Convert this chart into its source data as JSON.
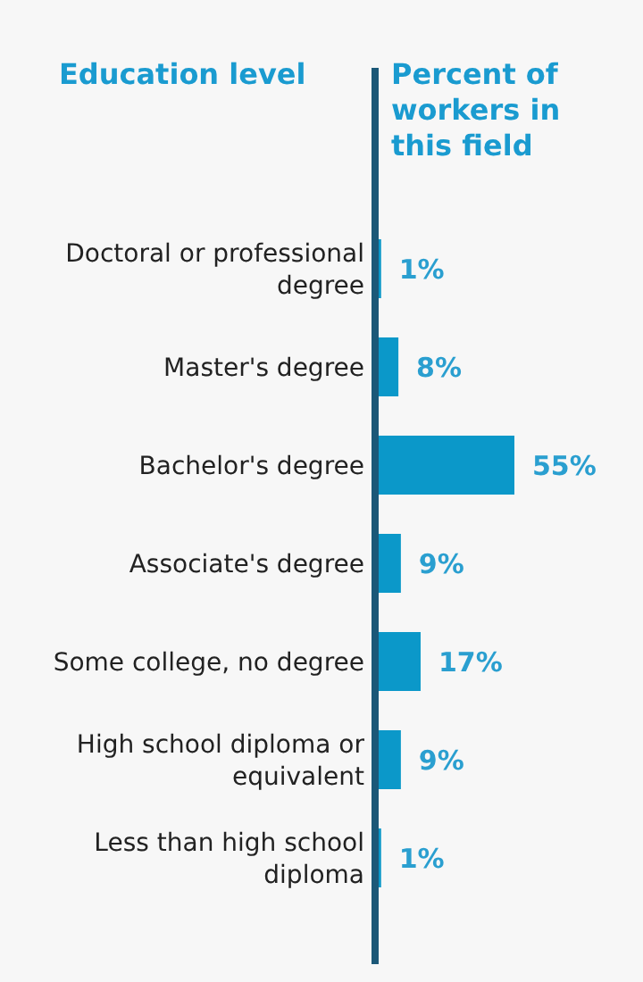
{
  "chart_data": {
    "type": "bar",
    "orientation": "horizontal",
    "ylabel": "Education level",
    "xlabel": "Percent of workers in this field",
    "categories": [
      "Doctoral or professional degree",
      "Master's degree",
      "Bachelor's degree",
      "Associate's degree",
      "Some college, no degree",
      "High school diploma or equivalent",
      "Less than high school diploma"
    ],
    "values": [
      1,
      8,
      55,
      9,
      17,
      9,
      1
    ],
    "value_labels": [
      "1%",
      "8%",
      "55%",
      "9%",
      "17%",
      "9%",
      "1%"
    ],
    "color": "#0b98c9"
  }
}
